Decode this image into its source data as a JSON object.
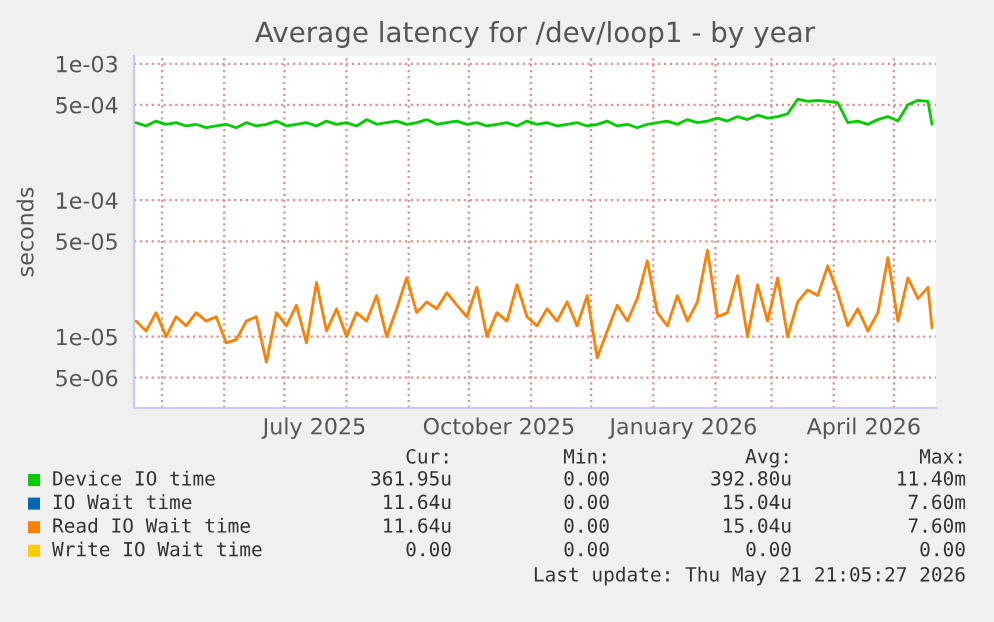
{
  "chart_data": {
    "type": "line",
    "title": "Average latency for /dev/loop1 - by year",
    "ylabel": "seconds",
    "log": "y",
    "grid": true,
    "legend": "bottom",
    "line_style": "solid",
    "marker": "none",
    "ylim": [
      3e-06,
      0.00114
    ],
    "yticks": [
      {
        "value": 0.001,
        "label": "1e-03"
      },
      {
        "value": 0.0005,
        "label": "5e-04"
      },
      {
        "value": 0.0001,
        "label": "1e-04"
      },
      {
        "value": 5e-05,
        "label": "5e-05"
      },
      {
        "value": 1e-05,
        "label": "1e-05"
      },
      {
        "value": 5e-06,
        "label": "5e-06"
      }
    ],
    "xlim": [
      "2025-04-17",
      "2026-05-22"
    ],
    "xticks": [
      {
        "value": "2025-05-01",
        "label": null
      },
      {
        "value": "2025-06-01",
        "label": null
      },
      {
        "value": "2025-07-01",
        "label": null
      },
      {
        "value": "2025-08-01",
        "label": null
      },
      {
        "value": "2025-09-01",
        "label": null
      },
      {
        "value": "2025-10-01",
        "label": null
      },
      {
        "value": "2025-11-01",
        "label": null
      },
      {
        "value": "2025-12-01",
        "label": null
      },
      {
        "value": "2026-01-01",
        "label": null
      },
      {
        "value": "2026-02-01",
        "label": null
      },
      {
        "value": "2026-03-01",
        "label": null
      },
      {
        "value": "2026-04-01",
        "label": null
      },
      {
        "value": "2026-05-01",
        "label": null
      },
      {
        "value": "2025-07-16",
        "label": "July 2025"
      },
      {
        "value": "2025-10-16",
        "label": "October 2025"
      },
      {
        "value": "2026-01-16",
        "label": "January 2026"
      },
      {
        "value": "2026-04-16",
        "label": "April 2026"
      }
    ],
    "x": [
      "2025-04-18",
      "2025-04-23",
      "2025-04-28",
      "2025-05-03",
      "2025-05-08",
      "2025-05-13",
      "2025-05-18",
      "2025-05-23",
      "2025-05-28",
      "2025-06-02",
      "2025-06-07",
      "2025-06-12",
      "2025-06-17",
      "2025-06-22",
      "2025-06-27",
      "2025-07-02",
      "2025-07-07",
      "2025-07-12",
      "2025-07-17",
      "2025-07-22",
      "2025-07-27",
      "2025-08-01",
      "2025-08-06",
      "2025-08-11",
      "2025-08-16",
      "2025-08-21",
      "2025-08-26",
      "2025-08-31",
      "2025-09-05",
      "2025-09-10",
      "2025-09-15",
      "2025-09-20",
      "2025-09-25",
      "2025-09-30",
      "2025-10-05",
      "2025-10-10",
      "2025-10-15",
      "2025-10-20",
      "2025-10-25",
      "2025-10-30",
      "2025-11-04",
      "2025-11-09",
      "2025-11-14",
      "2025-11-19",
      "2025-11-24",
      "2025-11-29",
      "2025-12-04",
      "2025-12-09",
      "2025-12-14",
      "2025-12-19",
      "2025-12-24",
      "2025-12-29",
      "2026-01-03",
      "2026-01-08",
      "2026-01-13",
      "2026-01-18",
      "2026-01-23",
      "2026-01-28",
      "2026-02-02",
      "2026-02-07",
      "2026-02-12",
      "2026-02-17",
      "2026-02-22",
      "2026-02-27",
      "2026-03-04",
      "2026-03-09",
      "2026-03-14",
      "2026-03-19",
      "2026-03-24",
      "2026-03-29",
      "2026-04-03",
      "2026-04-08",
      "2026-04-13",
      "2026-04-18",
      "2026-04-23",
      "2026-04-28",
      "2026-05-03",
      "2026-05-08",
      "2026-05-13",
      "2026-05-18",
      "2026-05-20"
    ],
    "series": [
      {
        "name": "Device IO time",
        "color": "#00cc00",
        "values": [
          0.00037,
          0.00035,
          0.00038,
          0.00036,
          0.00037,
          0.00035,
          0.00036,
          0.00034,
          0.00035,
          0.00036,
          0.00034,
          0.00037,
          0.00035,
          0.00036,
          0.00038,
          0.00035,
          0.00036,
          0.00037,
          0.00035,
          0.00038,
          0.00036,
          0.00037,
          0.00035,
          0.00039,
          0.00036,
          0.00037,
          0.00038,
          0.00036,
          0.00037,
          0.00039,
          0.00036,
          0.00037,
          0.00038,
          0.00036,
          0.00037,
          0.00035,
          0.00036,
          0.00037,
          0.00035,
          0.00038,
          0.00036,
          0.00037,
          0.00035,
          0.00036,
          0.00037,
          0.00035,
          0.00036,
          0.00038,
          0.00035,
          0.00036,
          0.00034,
          0.00036,
          0.00037,
          0.00038,
          0.00036,
          0.00039,
          0.00037,
          0.00038,
          0.0004,
          0.00038,
          0.00041,
          0.00039,
          0.00042,
          0.0004,
          0.00041,
          0.00043,
          0.00055,
          0.00053,
          0.00054,
          0.00053,
          0.00052,
          0.00037,
          0.00038,
          0.00036,
          0.00039,
          0.00041,
          0.00038,
          0.0005,
          0.00054,
          0.00053,
          0.00036
        ]
      },
      {
        "name": "IO Wait time",
        "color": "#0066b3",
        "values": [
          null,
          null,
          null,
          null,
          null,
          null,
          null,
          null,
          null,
          null,
          null,
          null,
          null,
          null,
          null,
          null,
          null,
          null,
          null,
          null,
          null,
          null,
          null,
          null,
          null,
          null,
          null,
          null,
          null,
          null,
          null,
          null,
          null,
          null,
          null,
          null,
          null,
          null,
          null,
          null,
          null,
          null,
          null,
          null,
          null,
          null,
          null,
          null,
          null,
          null,
          null,
          null,
          null,
          null,
          null,
          null,
          null,
          null,
          null,
          null,
          null,
          null,
          null,
          null,
          null,
          null,
          null,
          null,
          null,
          null,
          null,
          null,
          null,
          null,
          null,
          null,
          null,
          null,
          null,
          null,
          null
        ]
      },
      {
        "name": "Read IO Wait time",
        "color": "#ff8000",
        "values": [
          1.3e-05,
          1.1e-05,
          1.5e-05,
          1e-05,
          1.4e-05,
          1.2e-05,
          1.5e-05,
          1.3e-05,
          1.4e-05,
          9e-06,
          9.5e-06,
          1.3e-05,
          1.4e-05,
          6.5e-06,
          1.5e-05,
          1.2e-05,
          1.7e-05,
          9e-06,
          2.5e-05,
          1.1e-05,
          1.6e-05,
          1e-05,
          1.5e-05,
          1.3e-05,
          2e-05,
          1e-05,
          1.6e-05,
          2.7e-05,
          1.5e-05,
          1.8e-05,
          1.6e-05,
          2.1e-05,
          1.7e-05,
          1.4e-05,
          2.3e-05,
          1e-05,
          1.5e-05,
          1.3e-05,
          2.4e-05,
          1.4e-05,
          1.2e-05,
          1.6e-05,
          1.3e-05,
          1.8e-05,
          1.2e-05,
          2e-05,
          7e-06,
          1.1e-05,
          1.7e-05,
          1.3e-05,
          1.9e-05,
          3.6e-05,
          1.5e-05,
          1.2e-05,
          2e-05,
          1.3e-05,
          1.8e-05,
          4.3e-05,
          1.4e-05,
          1.5e-05,
          2.8e-05,
          1e-05,
          2.4e-05,
          1.3e-05,
          2.7e-05,
          1e-05,
          1.8e-05,
          2.2e-05,
          2e-05,
          3.3e-05,
          2.1e-05,
          1.2e-05,
          1.6e-05,
          1.1e-05,
          1.5e-05,
          3.8e-05,
          1.3e-05,
          2.7e-05,
          1.9e-05,
          2.3e-05,
          1.16e-05
        ]
      },
      {
        "name": "Write IO Wait time",
        "color": "#ffcc00",
        "values": [
          null,
          null,
          null,
          null,
          null,
          null,
          null,
          null,
          null,
          null,
          null,
          null,
          null,
          null,
          null,
          null,
          null,
          null,
          null,
          null,
          null,
          null,
          null,
          null,
          null,
          null,
          null,
          null,
          null,
          null,
          null,
          null,
          null,
          null,
          null,
          null,
          null,
          null,
          null,
          null,
          null,
          null,
          null,
          null,
          null,
          null,
          null,
          null,
          null,
          null,
          null,
          null,
          null,
          null,
          null,
          null,
          null,
          null,
          null,
          null,
          null,
          null,
          null,
          null,
          null,
          null,
          null,
          null,
          null,
          null,
          null,
          null,
          null,
          null,
          null,
          null,
          null,
          null,
          null,
          null,
          null
        ]
      }
    ],
    "annotations": [
      "Cur:",
      "Min:",
      "Avg:",
      "Max:",
      "361.95u",
      "0.00",
      "392.80u",
      "11.40m",
      "11.64u",
      "0.00",
      "15.04u",
      "7.60m",
      "11.64u",
      "0.00",
      "15.04u",
      "7.60m",
      "0.00",
      "0.00",
      "0.00",
      "0.00",
      "Last update: Thu May 21 21:05:27 2026"
    ]
  }
}
